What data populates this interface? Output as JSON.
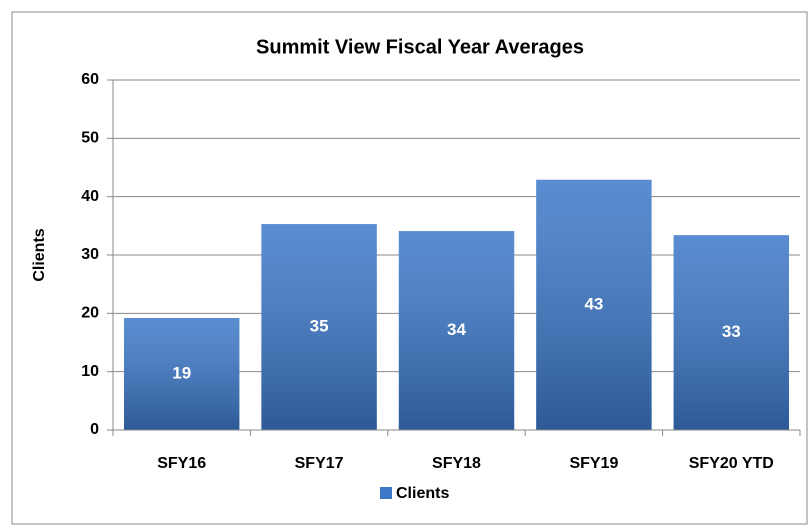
{
  "chart_data": {
    "type": "bar",
    "title": "Summit View Fiscal Year Averages",
    "y_label": "Clients",
    "categories": [
      "SFY16",
      "SFY17",
      "SFY18",
      "SFY19",
      "SFY20 YTD"
    ],
    "series": [
      {
        "name": "Clients",
        "color": "#3c78c8",
        "values": [
          19.2,
          35.3,
          34.1,
          42.9,
          33.4
        ],
        "value_labels": [
          "19",
          "35",
          "34",
          "43",
          "33"
        ]
      }
    ],
    "ylim": [
      0,
      60
    ],
    "yticks": [
      0,
      10,
      20,
      30,
      40,
      50,
      60
    ],
    "grid": true,
    "legend": "bottom"
  }
}
